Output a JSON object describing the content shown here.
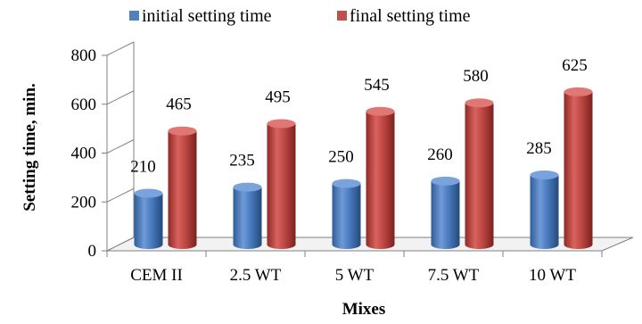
{
  "chart_data": {
    "type": "bar",
    "categories": [
      "CEM II",
      "2.5 WT",
      "5 WT",
      "7.5 WT",
      "10 WT"
    ],
    "series": [
      {
        "name": "initial setting time",
        "values": [
          210,
          235,
          250,
          260,
          285
        ],
        "color": "#4f81bd"
      },
      {
        "name": "final setting time",
        "values": [
          465,
          495,
          545,
          580,
          625
        ],
        "color": "#c0504d"
      }
    ],
    "title": "",
    "xlabel": "Mixes",
    "ylabel": "Setting time, min.",
    "ylim": [
      0,
      800
    ],
    "yticks": [
      0,
      200,
      400,
      600,
      800
    ],
    "yticks_labels": [
      "0",
      "200",
      "400",
      "600",
      "800"
    ],
    "grid": false,
    "legend_position": "top",
    "style": "3d-cylinder"
  }
}
